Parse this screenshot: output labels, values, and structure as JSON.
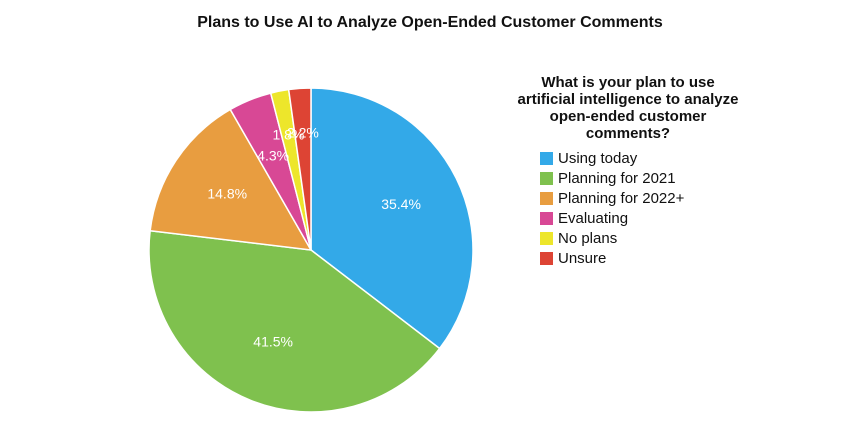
{
  "chart_data": {
    "type": "pie",
    "title": "Plans to Use AI to Analyze Open-Ended Customer Comments",
    "legend_title": "What is your plan to use artificial intelligence to analyze open-ended customer comments?",
    "legend_placement": "right",
    "start_angle_deg": 0,
    "direction": "clockwise",
    "slices": [
      {
        "label": "Using today",
        "value": 35.4,
        "display": "35.4%",
        "color": "#33a9e8"
      },
      {
        "label": "Planning for 2021",
        "value": 41.5,
        "display": "41.5%",
        "color": "#7fc14e"
      },
      {
        "label": "Planning for 2022+",
        "value": 14.8,
        "display": "14.8%",
        "color": "#e89d40"
      },
      {
        "label": "Evaluating",
        "value": 4.3,
        "display": "4.3%",
        "color": "#d84895"
      },
      {
        "label": "No plans",
        "value": 1.8,
        "display": "1.8%",
        "color": "#ede62b"
      },
      {
        "label": "Unsure",
        "value": 2.2,
        "display": "2.2%",
        "color": "#dd4434"
      }
    ]
  }
}
